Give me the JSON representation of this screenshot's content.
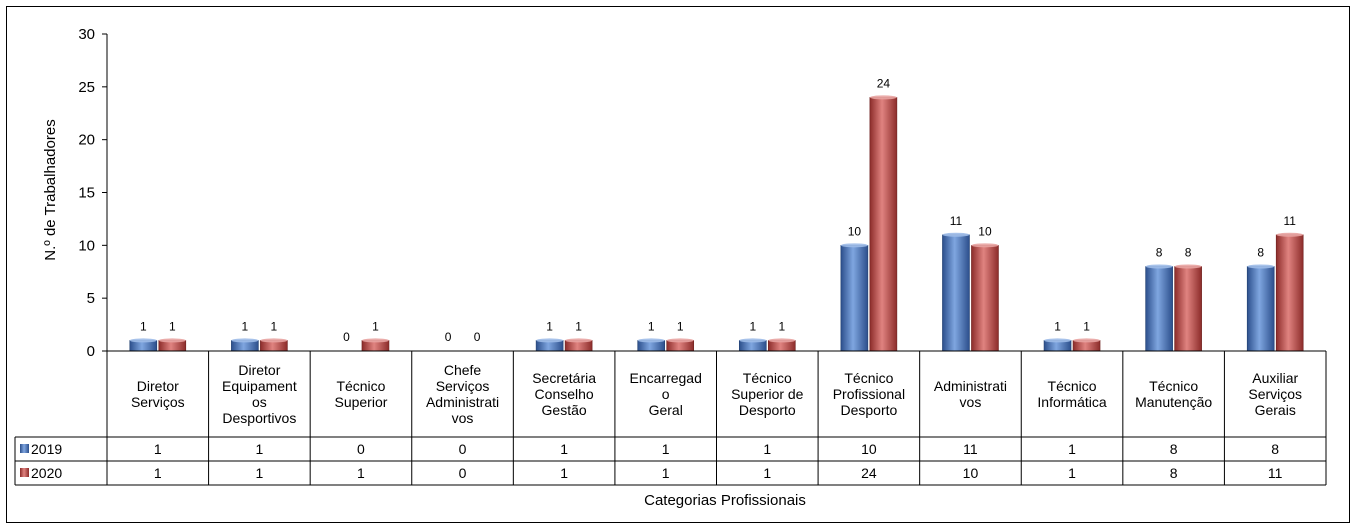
{
  "chart_data": {
    "type": "bar",
    "xlabel": "Categorias Profissionais",
    "ylabel": "N.º de Trabalhadores",
    "ylim": [
      0,
      30
    ],
    "yticks": [
      0,
      5,
      10,
      15,
      20,
      25,
      30
    ],
    "grid": false,
    "legend": "data-table-left",
    "categories": [
      [
        "Diretor",
        "Serviços"
      ],
      [
        "Diretor",
        "Equipament",
        "os",
        "Desportivos"
      ],
      [
        "Técnico",
        "Superior"
      ],
      [
        "Chefe",
        "Serviços",
        "Administrati",
        "vos"
      ],
      [
        "Secretária",
        "Conselho",
        "Gestão"
      ],
      [
        "Encarregad",
        "o",
        "Geral"
      ],
      [
        "Técnico",
        "Superior de",
        "Desporto"
      ],
      [
        "Técnico",
        "Profissional",
        "Desporto"
      ],
      [
        "Administrati",
        "vos"
      ],
      [
        "Técnico",
        "Informática"
      ],
      [
        "Técnico",
        "Manutenção"
      ],
      [
        "Auxiliar",
        "Serviços",
        "Gerais"
      ]
    ],
    "series": [
      {
        "name": "2019",
        "color": "#4A78C2",
        "values": [
          1,
          1,
          0,
          0,
          1,
          1,
          1,
          10,
          11,
          1,
          8,
          8
        ]
      },
      {
        "name": "2020",
        "color": "#C0504D",
        "values": [
          1,
          1,
          1,
          0,
          1,
          1,
          1,
          24,
          10,
          1,
          8,
          11
        ]
      }
    ]
  }
}
